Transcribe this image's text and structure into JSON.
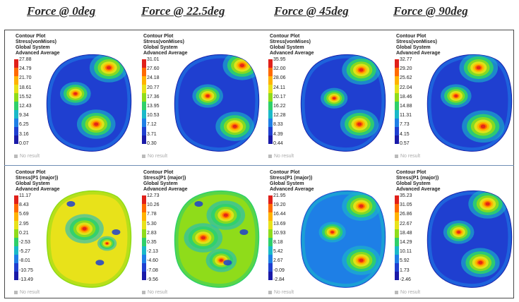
{
  "titles": [
    "Force @ 0deg",
    "Force @ 22.5deg",
    "Force @ 45deg",
    "Force @ 90deg"
  ],
  "colors": {
    "scale": [
      "#e0201a",
      "#ff6a00",
      "#ffb300",
      "#e8e21a",
      "#8fdc1a",
      "#2fd06a",
      "#1ab9c8",
      "#1e7fe6",
      "#1f3fd0",
      "#1a1aa8"
    ],
    "frame": "#4a4a4a"
  },
  "panels": [
    {
      "labels": [
        "Contour Plot",
        "Stress(vonMises)",
        "Global System",
        "Advanced Average"
      ],
      "ticks": [
        "27.88",
        "24.79",
        "21.70",
        "18.61",
        "15.52",
        "12.43",
        "9.34",
        "6.25",
        "3.16",
        "0.07"
      ],
      "no_result": "No result",
      "style": "low",
      "hot": [
        [
          0.72,
          0.2,
          1
        ],
        [
          0.35,
          0.43,
          0.8
        ],
        [
          0.58,
          0.7,
          1
        ]
      ]
    },
    {
      "labels": [
        "Contour Plot",
        "Stress(vonMises)",
        "Global System",
        "Advanced Average"
      ],
      "ticks": [
        "31.01",
        "27.60",
        "24.18",
        "20.77",
        "17.36",
        "13.95",
        "10.53",
        "7.12",
        "3.71",
        "0.30"
      ],
      "no_result": "No result",
      "style": "low",
      "hot": [
        [
          0.78,
          0.18,
          1
        ],
        [
          0.4,
          0.45,
          0.8
        ],
        [
          0.7,
          0.72,
          1
        ]
      ]
    },
    {
      "labels": [
        "Contour Plot",
        "Stress(vonMises)",
        "Global System",
        "Advanced Average"
      ],
      "ticks": [
        "35.95",
        "32.00",
        "28.06",
        "24.11",
        "20.17",
        "16.22",
        "12.28",
        "8.33",
        "4.39",
        "0.44"
      ],
      "no_result": "No result",
      "style": "low",
      "hot": [
        [
          0.7,
          0.22,
          1
        ],
        [
          0.4,
          0.47,
          0.7
        ],
        [
          0.68,
          0.7,
          1
        ]
      ]
    },
    {
      "labels": [
        "Contour Plot",
        "Stress(vonMises)",
        "Global System",
        "Advanced Average"
      ],
      "ticks": [
        "32.77",
        "29.20",
        "25.62",
        "22.04",
        "18.46",
        "14.88",
        "11.31",
        "7.73",
        "4.15",
        "0.57"
      ],
      "no_result": "No result",
      "style": "low",
      "hot": [
        [
          0.6,
          0.2,
          1
        ],
        [
          0.35,
          0.45,
          0.8
        ],
        [
          0.65,
          0.72,
          1.1
        ]
      ]
    },
    {
      "labels": [
        "Contour Plot",
        "Stress(P1 (major))",
        "Global System",
        "Advanced Average"
      ],
      "ticks": [
        "11.17",
        "8.43",
        "5.69",
        "2.95",
        "0.21",
        "-2.53",
        "-5.27",
        "-8.01",
        "-10.75",
        "-13.49"
      ],
      "no_result": "No result",
      "style": "mid",
      "hot": [
        [
          0.45,
          0.42,
          1
        ],
        [
          0.7,
          0.55,
          0.5
        ]
      ]
    },
    {
      "labels": [
        "Contour Plot",
        "Stress(P1 (major))",
        "Global System",
        "Advanced Average"
      ],
      "ticks": [
        "12.73",
        "10.26",
        "7.78",
        "5.30",
        "2.83",
        "0.35",
        "-2.13",
        "-4.60",
        "-7.08",
        "-9.56"
      ],
      "no_result": "No result",
      "style": "midlow",
      "hot": [
        [
          0.6,
          0.3,
          1
        ],
        [
          0.35,
          0.5,
          1
        ],
        [
          0.55,
          0.7,
          0.8
        ]
      ]
    },
    {
      "labels": [
        "Contour Plot",
        "Stress(P1 (major))",
        "Global System",
        "Advanced Average"
      ],
      "ticks": [
        "21.95",
        "19.20",
        "16.44",
        "13.69",
        "10.93",
        "8.18",
        "5.42",
        "2.67",
        "-0.09",
        "-2.84"
      ],
      "no_result": "No result",
      "style": "low2",
      "hot": [
        [
          0.7,
          0.22,
          1
        ],
        [
          0.38,
          0.45,
          0.7
        ],
        [
          0.7,
          0.7,
          1
        ]
      ]
    },
    {
      "labels": [
        "Contour Plot",
        "Stress(P1 (major))",
        "Global System",
        "Advanced Average"
      ],
      "ticks": [
        "35.23",
        "31.05",
        "26.86",
        "22.67",
        "18.48",
        "14.29",
        "10.11",
        "5.92",
        "1.73",
        "-2.46"
      ],
      "no_result": "No result",
      "style": "low",
      "hot": [
        [
          0.7,
          0.2,
          1
        ],
        [
          0.38,
          0.45,
          0.8
        ],
        [
          0.62,
          0.72,
          1
        ]
      ]
    }
  ]
}
